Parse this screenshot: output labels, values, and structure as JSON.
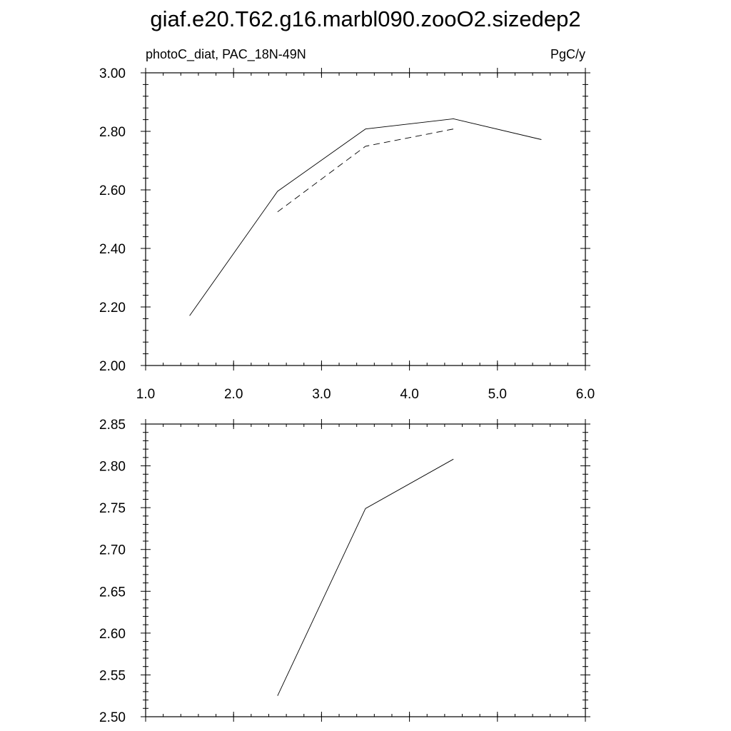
{
  "figure_title": "giaf.e20.T62.g16.marbl090.zooO2.sizedep2",
  "chart_data": [
    {
      "type": "line",
      "title_left": "photoC_diat, PAC_18N-49N",
      "title_right": "PgC/y",
      "xlim": [
        1.0,
        6.0
      ],
      "ylim": [
        2.0,
        3.0
      ],
      "xticks": [
        "1.0",
        "2.0",
        "3.0",
        "4.0",
        "5.0",
        "6.0"
      ],
      "yticks": [
        "2.00",
        "2.20",
        "2.40",
        "2.60",
        "2.80",
        "3.00"
      ],
      "series": [
        {
          "style": "solid",
          "x": [
            1.5,
            2.5,
            3.5,
            4.5,
            5.5
          ],
          "values": [
            2.17,
            2.595,
            2.808,
            2.843,
            2.772
          ]
        },
        {
          "style": "dashed",
          "x": [
            2.5,
            3.5,
            4.5
          ],
          "values": [
            2.525,
            2.749,
            2.808
          ]
        }
      ]
    },
    {
      "type": "line",
      "xlim": [
        1.0,
        6.0
      ],
      "ylim": [
        2.5,
        2.85
      ],
      "yticks": [
        "2.50",
        "2.55",
        "2.60",
        "2.65",
        "2.70",
        "2.75",
        "2.80",
        "2.85"
      ],
      "series": [
        {
          "style": "solid",
          "x": [
            2.5,
            3.5,
            4.5
          ],
          "values": [
            2.525,
            2.749,
            2.808
          ]
        }
      ]
    }
  ]
}
